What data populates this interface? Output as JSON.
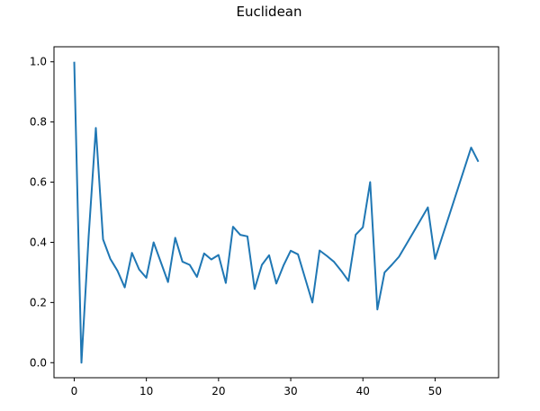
{
  "chart_data": {
    "type": "line",
    "title": "Euclidean",
    "xlabel": "",
    "ylabel": "",
    "xlim": [
      -2.8,
      58.8
    ],
    "ylim": [
      -0.05,
      1.05
    ],
    "xticks": [
      0,
      10,
      20,
      30,
      40,
      50
    ],
    "yticks": [
      0.0,
      0.2,
      0.4,
      0.6,
      0.8,
      1.0
    ],
    "xtick_labels": [
      "0",
      "10",
      "20",
      "30",
      "40",
      "50"
    ],
    "ytick_labels": [
      "0.0",
      "0.2",
      "0.4",
      "0.6",
      "0.8",
      "1.0"
    ],
    "grid": false,
    "series": [
      {
        "color": "#1f77b4",
        "x": [
          0,
          1,
          2,
          3,
          4,
          5,
          6,
          7,
          8,
          9,
          10,
          11,
          12,
          13,
          14,
          15,
          16,
          17,
          18,
          19,
          20,
          21,
          22,
          23,
          24,
          25,
          26,
          27,
          28,
          29,
          30,
          31,
          32,
          33,
          34,
          35,
          36,
          37,
          38,
          39,
          40,
          41,
          42,
          43,
          44,
          45,
          46,
          47,
          48,
          49,
          50,
          51,
          52,
          53,
          54,
          55,
          56
        ],
        "y": [
          1.0,
          0.0,
          0.42,
          0.78,
          0.41,
          0.345,
          0.305,
          0.25,
          0.365,
          0.31,
          0.282,
          0.4,
          0.334,
          0.268,
          0.415,
          0.336,
          0.325,
          0.285,
          0.363,
          0.343,
          0.358,
          0.265,
          0.452,
          0.425,
          0.42,
          0.245,
          0.325,
          0.357,
          0.263,
          0.323,
          0.372,
          0.36,
          0.28,
          0.2,
          0.373,
          0.355,
          0.335,
          0.305,
          0.272,
          0.425,
          0.45,
          0.6,
          0.177,
          0.3,
          0.325,
          0.352,
          0.393,
          0.434,
          0.475,
          0.516,
          0.345,
          0.419,
          0.493,
          0.567,
          0.641,
          0.715,
          0.668
        ]
      }
    ]
  }
}
